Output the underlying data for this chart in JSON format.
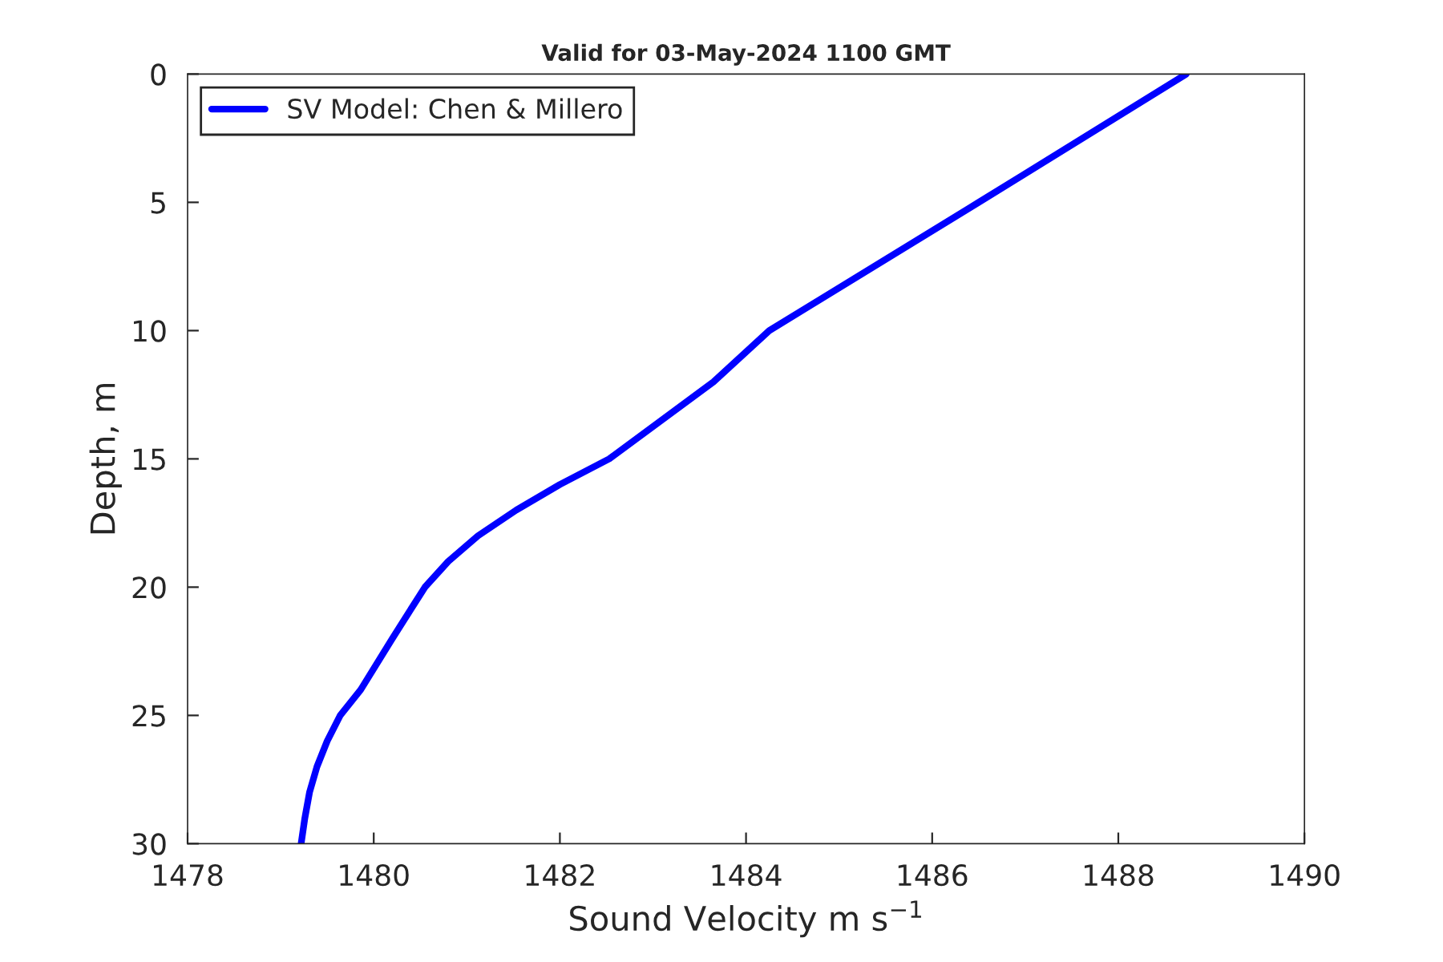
{
  "chart_data": {
    "type": "line",
    "title": "Valid for 03-May-2024 1100 GMT",
    "xlabel": "Sound Velocity m s$^{−1}$",
    "ylabel": "Depth, m",
    "series": [
      {
        "name": "SV Model: Chen & Millero",
        "color": "#0000ff",
        "x": [
          1488.73,
          1486.5,
          1484.25,
          1483.65,
          1482.53,
          1482.0,
          1481.53,
          1481.12,
          1480.8,
          1480.55,
          1480.2,
          1479.86,
          1479.64,
          1479.5,
          1479.39,
          1479.31,
          1479.26,
          1479.22
        ],
        "values": [
          0,
          5,
          10,
          12,
          15,
          16,
          17,
          18,
          19,
          20,
          22,
          24,
          25,
          26,
          27,
          28,
          29,
          30
        ]
      }
    ],
    "xlim": [
      1478,
      1490
    ],
    "xticks": [
      1478,
      1480,
      1482,
      1484,
      1486,
      1488,
      1490
    ],
    "ylim": [
      30,
      0
    ],
    "yticks": [
      0,
      5,
      10,
      15,
      20,
      25,
      30
    ],
    "grid": false,
    "legend": "top left",
    "marker": "none",
    "line_style": "solid"
  }
}
